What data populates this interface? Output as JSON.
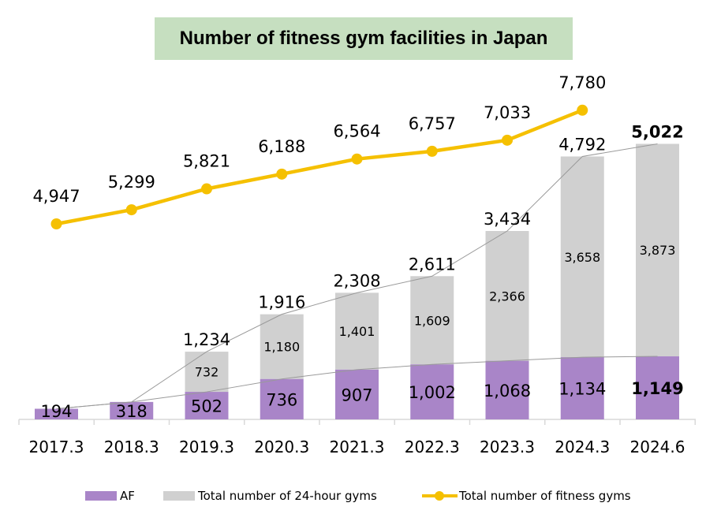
{
  "chart_data": {
    "type": "bar",
    "title": "Number of fitness gym facilities in Japan",
    "categories": [
      "2017.3",
      "2018.3",
      "2019.3",
      "2020.3",
      "2021.3",
      "2022.3",
      "2023.3",
      "2024.3",
      "2024.6"
    ],
    "series": [
      {
        "name": "AF",
        "type": "bar",
        "stack": "gyms24",
        "color": "#a985c8",
        "values": [
          194,
          318,
          502,
          736,
          907,
          1002,
          1068,
          1134,
          1149
        ]
      },
      {
        "name": "Total number of 24-hour gyms",
        "type": "bar",
        "stack": "gyms24",
        "color": "#d0d0d0",
        "values": [
          null,
          null,
          732,
          1180,
          1401,
          1609,
          2366,
          3658,
          3873
        ]
      },
      {
        "name": "Total number of fitness gyms",
        "type": "line",
        "color": "#f5c000",
        "values": [
          4947,
          5299,
          5821,
          6188,
          6564,
          6757,
          7033,
          7780,
          null
        ]
      }
    ],
    "stack_totals": [
      194,
      318,
      1234,
      1916,
      2308,
      2611,
      3434,
      4792,
      5022
    ],
    "labels": {
      "af": [
        "194",
        "318",
        "502",
        "736",
        "907",
        "1,002",
        "1,068",
        "1,134",
        "1,149"
      ],
      "other": [
        "",
        "",
        "732",
        "1,180",
        "1,401",
        "1,609",
        "2,366",
        "3,658",
        "3,873"
      ],
      "totals": [
        "",
        "",
        "1,234",
        "1,916",
        "2,308",
        "2,611",
        "3,434",
        "4,792",
        "5,022"
      ],
      "line": [
        "4,947",
        "5,299",
        "5,821",
        "6,188",
        "6,564",
        "6,757",
        "7,033",
        "7,780",
        ""
      ]
    },
    "ylim": [
      0,
      8000
    ],
    "grid": false,
    "legend_position": "bottom",
    "xlabel": "",
    "ylabel": ""
  }
}
